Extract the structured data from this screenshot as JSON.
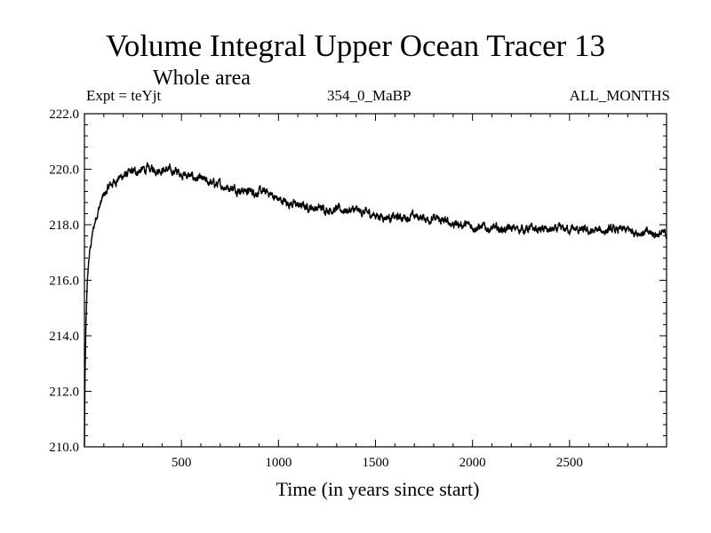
{
  "chart_data": {
    "type": "line",
    "title": "Volume Integral Upper Ocean Tracer 13",
    "subtitle": "Whole area",
    "expt_label": "Expt = teYjt",
    "run_label": "354_0_MaBP",
    "months_label": "ALL_MONTHS",
    "xlabel": "Time (in years since start)",
    "ylabel": "",
    "xlim": [
      0,
      3000
    ],
    "ylim": [
      210.0,
      222.0
    ],
    "x_ticks": [
      500,
      1000,
      1500,
      2000,
      2500
    ],
    "x_tick_labels": [
      "500",
      "1000",
      "1500",
      "2000",
      "2500"
    ],
    "y_ticks": [
      210.0,
      212.0,
      214.0,
      216.0,
      218.0,
      220.0,
      222.0
    ],
    "y_tick_labels": [
      "210.0",
      "212.0",
      "214.0",
      "216.0",
      "218.0",
      "220.0",
      "222.0"
    ],
    "grid": false,
    "series": [
      {
        "name": "Tracer 13",
        "color": "#000000",
        "noise_amplitude": 0.35,
        "points": [
          [
            0,
            210.0
          ],
          [
            3,
            212.5
          ],
          [
            8,
            214.5
          ],
          [
            15,
            216.0
          ],
          [
            25,
            216.9
          ],
          [
            40,
            217.6
          ],
          [
            60,
            218.3
          ],
          [
            90,
            218.9
          ],
          [
            130,
            219.4
          ],
          [
            180,
            219.7
          ],
          [
            250,
            219.9
          ],
          [
            320,
            220.0
          ],
          [
            400,
            220.0
          ],
          [
            480,
            219.9
          ],
          [
            560,
            219.7
          ],
          [
            650,
            219.5
          ],
          [
            750,
            219.35
          ],
          [
            850,
            219.2
          ],
          [
            950,
            219.15
          ],
          [
            1000,
            218.9
          ],
          [
            1100,
            218.7
          ],
          [
            1200,
            218.6
          ],
          [
            1300,
            218.55
          ],
          [
            1400,
            218.5
          ],
          [
            1500,
            218.35
          ],
          [
            1600,
            218.25
          ],
          [
            1700,
            218.3
          ],
          [
            1800,
            218.2
          ],
          [
            1900,
            218.05
          ],
          [
            2000,
            217.95
          ],
          [
            2100,
            217.85
          ],
          [
            2200,
            217.85
          ],
          [
            2300,
            217.85
          ],
          [
            2400,
            217.8
          ],
          [
            2500,
            217.85
          ],
          [
            2600,
            217.75
          ],
          [
            2700,
            217.8
          ],
          [
            2800,
            217.8
          ],
          [
            2900,
            217.7
          ],
          [
            3000,
            217.65
          ]
        ]
      }
    ]
  }
}
